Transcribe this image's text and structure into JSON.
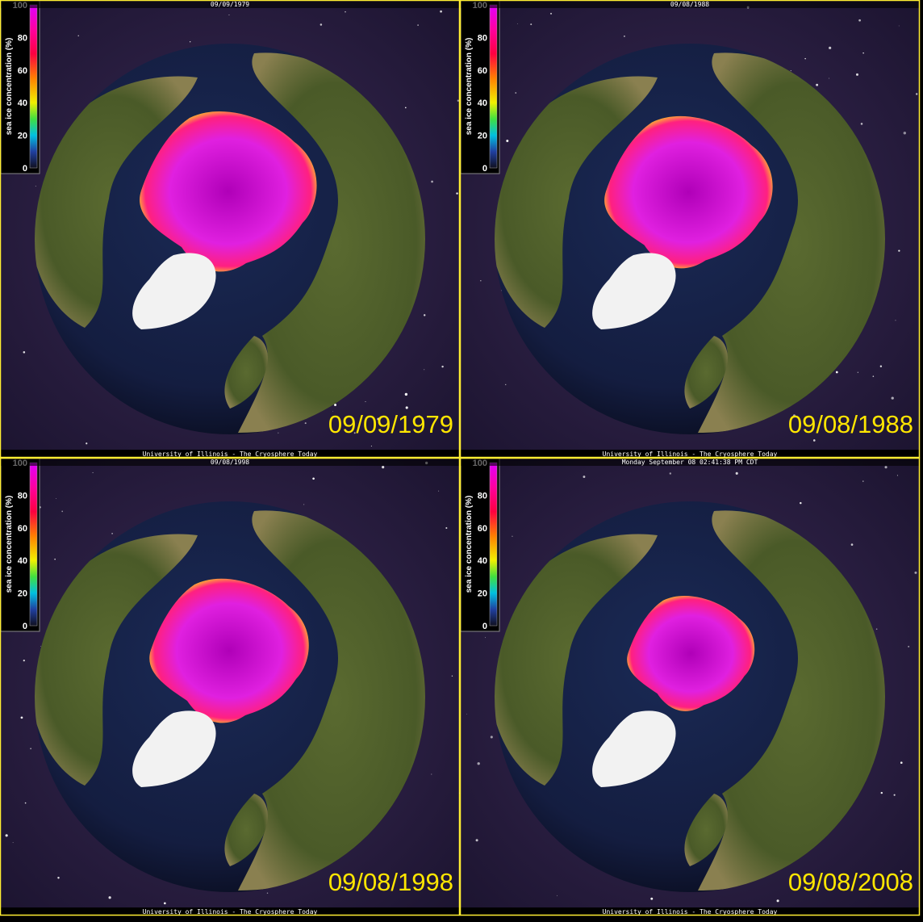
{
  "panels": [
    {
      "header": "09/09/1979",
      "date": "09/09/1979",
      "footer": "University of Illinois - The Cryosphere Today",
      "colorbar": {
        "label": "sea ice concentration (%)",
        "ticks": [
          100,
          80,
          60,
          40,
          20,
          0
        ]
      }
    },
    {
      "header": "09/08/1988",
      "date": "09/08/1988",
      "footer": "University of Illinois - The Cryosphere Today",
      "colorbar": {
        "label": "sea ice concentration (%)",
        "ticks": [
          100,
          80,
          60,
          40,
          20,
          0
        ]
      }
    },
    {
      "header": "09/08/1998",
      "date": "09/08/1998",
      "footer": "University of Illinois - The Cryosphere Today",
      "colorbar": {
        "label": "sea ice concentration (%)",
        "ticks": [
          100,
          80,
          60,
          40,
          20,
          0
        ]
      }
    },
    {
      "header": "Monday September 08 02:41:38 PM CDT",
      "date": "09/08/2008",
      "footer": "University of Illinois - The Cryosphere Today",
      "colorbar": {
        "label": "sea ice concentration (%)",
        "ticks": [
          100,
          80,
          60,
          40,
          20,
          0
        ]
      }
    }
  ]
}
